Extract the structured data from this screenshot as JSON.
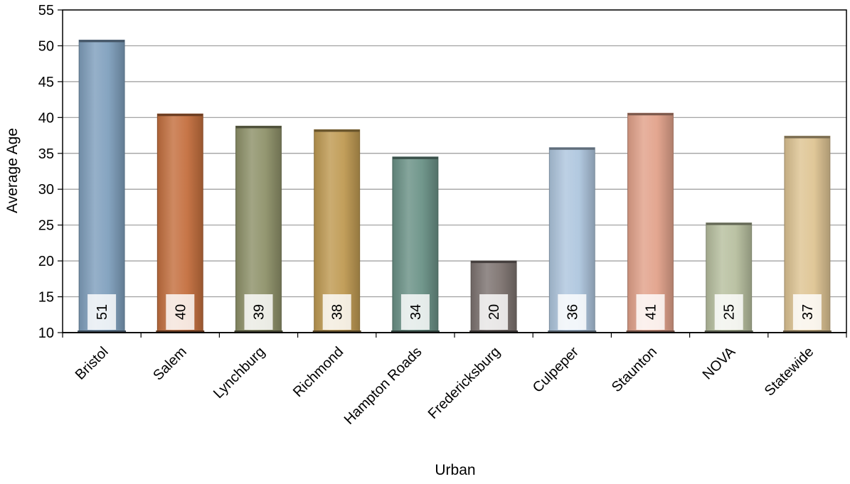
{
  "chart_data": {
    "type": "bar",
    "xlabel": "Urban",
    "ylabel": "Average  Age",
    "ylim": [
      10,
      55
    ],
    "yticks": [
      10,
      15,
      20,
      25,
      30,
      35,
      40,
      45,
      50,
      55
    ],
    "grid": true,
    "categories": [
      "Bristol",
      "Salem",
      "Lynchburg",
      "Richmond",
      "Hampton Roads",
      "Fredericksburg",
      "Culpeper",
      "Staunton",
      "NOVA",
      "Statewide"
    ],
    "values": [
      50.8,
      40.5,
      38.8,
      38.3,
      34.5,
      20.0,
      35.8,
      40.6,
      25.3,
      37.4
    ],
    "data_labels": [
      "51",
      "40",
      "39",
      "38",
      "34",
      "20",
      "36",
      "41",
      "25",
      "37"
    ],
    "colors": [
      "#7f9fbd",
      "#c46f3e",
      "#8e9169",
      "#bf9a52",
      "#6a9186",
      "#7d7370",
      "#aec6de",
      "#e2a18a",
      "#b7bf9f",
      "#dec493"
    ]
  }
}
